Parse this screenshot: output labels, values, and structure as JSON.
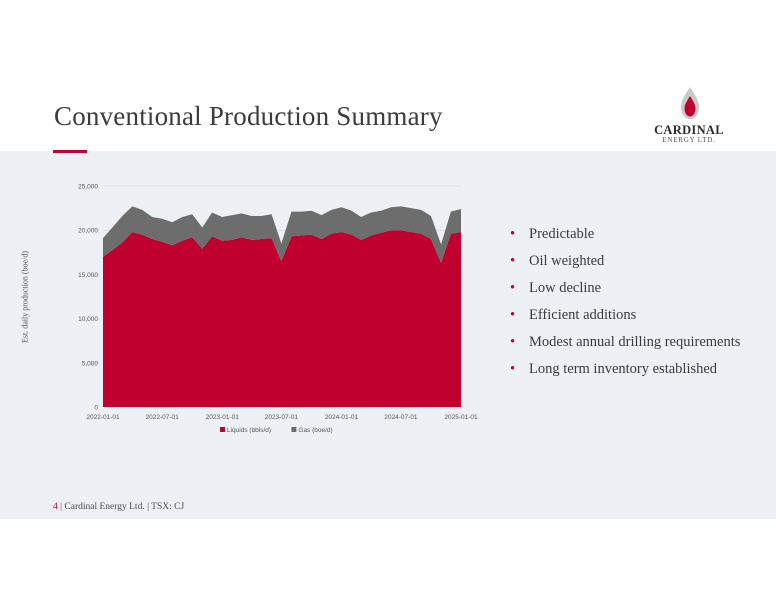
{
  "title": "Conventional Production Summary",
  "logo": {
    "name": "CARDINAL",
    "sub": "ENERGY LTD.",
    "flame_color": "#c0002e"
  },
  "bullets": [
    "Predictable",
    "Oil weighted",
    "Low decline",
    "Efficient additions",
    "Modest annual drilling requirements",
    "Long term inventory established"
  ],
  "footer": {
    "page": "4",
    "text": "| Cardinal Energy Ltd. | TSX: CJ"
  },
  "chart_data": {
    "type": "area",
    "stacked": true,
    "ylabel": "Est. daily production (boe/d)",
    "ylim": [
      0,
      25000
    ],
    "yticks": [
      "0",
      "5,000",
      "10,000",
      "15,000",
      "20,000",
      "25,000"
    ],
    "xticks": [
      "2022-01-01",
      "2022-07-01",
      "2023-01-01",
      "2023-07-01",
      "2024-01-01",
      "2024-07-01",
      "2025-01-01"
    ],
    "xlim": [
      "2022-01-01",
      "2025-01-01"
    ],
    "legend_position": "bottom",
    "x": [
      "2022-01-01",
      "2022-02-01",
      "2022-03-01",
      "2022-04-01",
      "2022-05-01",
      "2022-06-01",
      "2022-07-01",
      "2022-08-01",
      "2022-09-01",
      "2022-10-01",
      "2022-11-01",
      "2022-12-01",
      "2023-01-01",
      "2023-02-01",
      "2023-03-01",
      "2023-04-01",
      "2023-05-01",
      "2023-06-01",
      "2023-07-01",
      "2023-08-01",
      "2023-09-01",
      "2023-10-01",
      "2023-11-01",
      "2023-12-01",
      "2024-01-01",
      "2024-02-01",
      "2024-03-01",
      "2024-04-01",
      "2024-05-01",
      "2024-06-01",
      "2024-07-01",
      "2024-08-01",
      "2024-09-01",
      "2024-10-01",
      "2024-11-01",
      "2024-12-01",
      "2025-01-01"
    ],
    "series": [
      {
        "name": "Liquids (bbls/d)",
        "color": "#c0002e",
        "values": [
          17000,
          17800,
          18600,
          19800,
          19500,
          19000,
          18700,
          18300,
          18800,
          19200,
          17900,
          19300,
          18800,
          18900,
          19200,
          18900,
          19000,
          19100,
          16500,
          19300,
          19400,
          19500,
          19000,
          19600,
          19800,
          19500,
          18900,
          19400,
          19700,
          20000,
          20000,
          19800,
          19600,
          19000,
          16300,
          19600,
          19800
        ]
      },
      {
        "name": "Gas (boe/d)",
        "color": "#6d6d6d",
        "values": [
          2100,
          2600,
          3000,
          2900,
          2800,
          2500,
          2600,
          2600,
          2700,
          2600,
          2400,
          2700,
          2700,
          2800,
          2700,
          2700,
          2600,
          2700,
          2000,
          2800,
          2700,
          2700,
          2700,
          2700,
          2800,
          2700,
          2600,
          2600,
          2500,
          2600,
          2700,
          2700,
          2700,
          2600,
          2100,
          2500,
          2600
        ]
      }
    ]
  }
}
